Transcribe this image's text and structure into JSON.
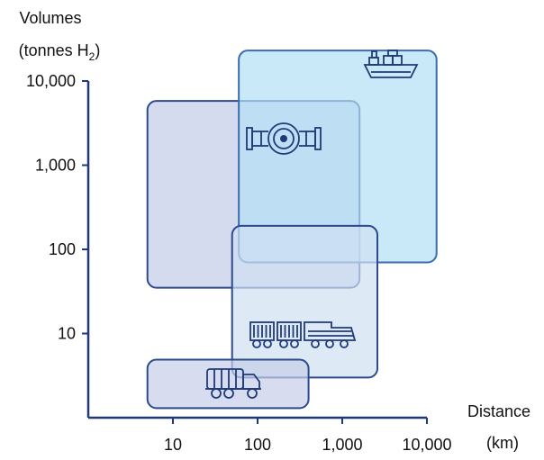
{
  "chart_data": {
    "type": "bubble-region",
    "title": "",
    "ylabel_line1": "Volumes",
    "ylabel_line2_prefix": "(tonnes H",
    "ylabel_line2_sub": "2",
    "ylabel_line2_suffix": ")",
    "xlabel_line1": "Distance",
    "xlabel_line2": "(km)",
    "x_scale": "log",
    "y_scale": "log",
    "xlim": [
      1,
      10000
    ],
    "ylim": [
      1,
      10000
    ],
    "x_ticks": [
      {
        "value": 10,
        "label": "10"
      },
      {
        "value": 100,
        "label": "100"
      },
      {
        "value": 1000,
        "label": "1,000"
      },
      {
        "value": 10000,
        "label": "10,000"
      }
    ],
    "y_ticks": [
      {
        "value": 10,
        "label": "10"
      },
      {
        "value": 100,
        "label": "100"
      },
      {
        "value": 1000,
        "label": "1,000"
      },
      {
        "value": 10000,
        "label": "10,000"
      }
    ],
    "grid": false,
    "regions": [
      {
        "icon": "pipeline-icon",
        "x_range": [
          5,
          1600
        ],
        "y_range": [
          35,
          5800
        ],
        "fill": "#c6cfe8",
        "stroke": "#2d4a8c",
        "opacity": 0.75
      },
      {
        "icon": "ship-icon",
        "x_range": [
          60,
          13000
        ],
        "y_range": [
          70,
          23000
        ],
        "fill": "#b4e0f5",
        "stroke": "#3a6cb0",
        "opacity": 0.7
      },
      {
        "icon": "train-icon",
        "x_range": [
          50,
          2600
        ],
        "y_range": [
          3,
          190
        ],
        "fill": "#d0dff2",
        "stroke": "#2d4a8c",
        "opacity": 0.7
      },
      {
        "icon": "truck-icon",
        "x_range": [
          5,
          400
        ],
        "y_range": [
          1.3,
          4.9
        ],
        "fill": "#c6cfe8",
        "stroke": "#2d4a8c",
        "opacity": 0.7
      }
    ]
  },
  "colors": {
    "axis": "#1f3a7a",
    "icon": "#1f3a7a"
  }
}
